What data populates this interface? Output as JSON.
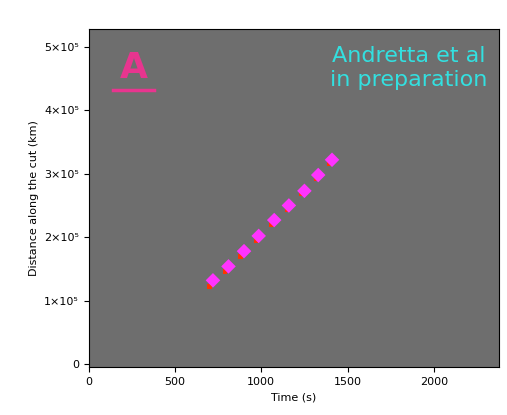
{
  "chart_data": {
    "type": "scatter",
    "x_label": "Time (s)",
    "y_label": "Distance along the cut (km)",
    "annotations": [
      "A",
      "Andretta et al\nin preparation"
    ],
    "xlim": [
      0,
      2380
    ],
    "ylim": [
      -5000,
      528000
    ],
    "xticks": [
      0,
      500,
      1000,
      1500,
      2000
    ],
    "yticks": [
      0,
      {
        "value": 100000,
        "label": "1×10⁵"
      },
      {
        "value": 200000,
        "label": "2×10⁵"
      },
      {
        "value": 300000,
        "label": "3×10⁵"
      },
      {
        "value": 400000,
        "label": "4×10⁵"
      },
      {
        "value": 500000,
        "label": "5×10⁵"
      }
    ],
    "grid": false,
    "series": [
      {
        "color": "#ff3300",
        "marker": "square",
        "x": [
          700,
          790,
          880,
          970,
          1060,
          1150,
          1235,
          1320,
          1395
        ],
        "values": [
          122000,
          146000,
          170000,
          195000,
          220000,
          244000,
          268000,
          292000,
          316000
        ]
      },
      {
        "color": "#ff33ff",
        "marker": "diamond",
        "x": [
          720,
          810,
          900,
          985,
          1075,
          1160,
          1250,
          1330,
          1410
        ],
        "values": [
          132000,
          154000,
          178000,
          202000,
          227000,
          250000,
          273000,
          298000,
          322000
        ]
      }
    ]
  }
}
